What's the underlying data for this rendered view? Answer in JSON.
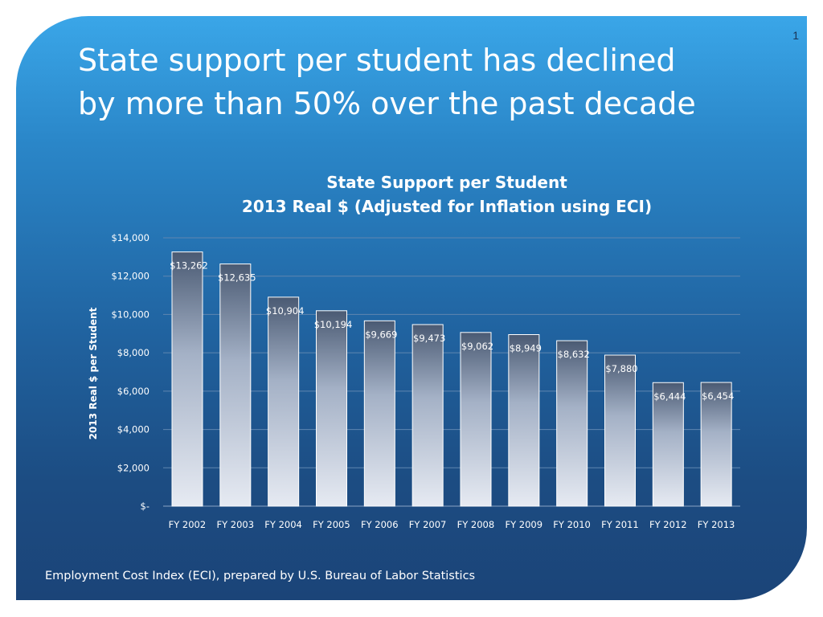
{
  "slide": {
    "number": "1",
    "title_lines": [
      "State support per student has declined",
      "by more than 50% over the past decade"
    ],
    "footnote": "Employment Cost Index (ECI), prepared by U.S. Bureau of Labor Statistics"
  },
  "colors": {
    "background_top": "#3aa6e8",
    "background_bottom": "#1b4478",
    "bar_top": "#4a5a73",
    "bar_bottom": "#e6eaf2",
    "text": "#ffffff"
  },
  "chart_data": {
    "type": "bar",
    "title_lines": [
      "State Support per Student",
      "2013 Real $ (Adjusted for Inflation using ECI)"
    ],
    "xlabel": "",
    "ylabel": "2013 Real $ per Student",
    "categories": [
      "FY 2002",
      "FY 2003",
      "FY 2004",
      "FY 2005",
      "FY 2006",
      "FY 2007",
      "FY 2008",
      "FY 2009",
      "FY 2010",
      "FY 2011",
      "FY 2012",
      "FY 2013"
    ],
    "values": [
      13262,
      12635,
      10904,
      10194,
      9669,
      9473,
      9062,
      8949,
      8632,
      7880,
      6444,
      6454
    ],
    "value_labels": [
      "$13,262",
      "$12,635",
      "$10,904",
      "$10,194",
      "$9,669",
      "$9,473",
      "$9,062",
      "$8,949",
      "$8,632",
      "$7,880",
      "$6,444",
      "$6,454"
    ],
    "ylim": [
      0,
      14000
    ],
    "y_ticks": [
      0,
      2000,
      4000,
      6000,
      8000,
      10000,
      12000,
      14000
    ],
    "y_tick_labels": [
      "$-",
      "$2,000",
      "$4,000",
      "$6,000",
      "$8,000",
      "$10,000",
      "$12,000",
      "$14,000"
    ],
    "grid": true,
    "legend": "none"
  }
}
